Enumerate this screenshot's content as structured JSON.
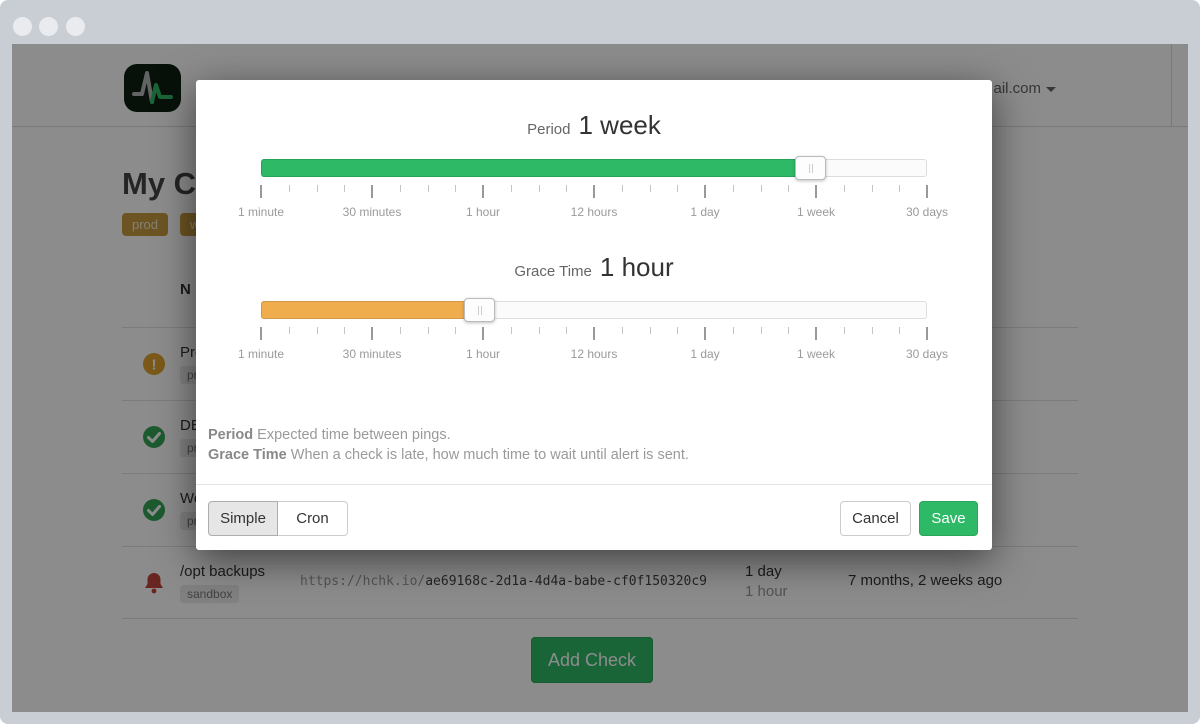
{
  "header": {
    "account_label": "ail.com"
  },
  "page": {
    "title": "My C",
    "filter_tags": [
      "prod",
      "work"
    ],
    "table": {
      "name_header": "N"
    },
    "rows": [
      {
        "status": "grace",
        "name": "Pro",
        "tag": "pr"
      },
      {
        "status": "up",
        "name": "DE",
        "tag": "pr"
      },
      {
        "status": "up",
        "name": "We",
        "tag": "pr"
      },
      {
        "status": "down",
        "name": "/opt backups",
        "tag": "sandbox",
        "url_prefix": "https://hchk.io/",
        "url_code": "ae69168c-2d1a-4d4a-babe-cf0f150320c9",
        "period": "1 day",
        "grace": "1 hour",
        "last_ping": "7 months, 2 weeks ago"
      }
    ],
    "add_check_label": "Add Check"
  },
  "modal": {
    "period": {
      "label": "Period",
      "value": "1 week",
      "color": "#2eb967",
      "fill_pct": 82.7,
      "handle_pct": 82.7
    },
    "grace": {
      "label": "Grace Time",
      "value": "1 hour",
      "color": "#f0ad4e",
      "fill_pct": 32.9,
      "handle_pct": 32.9
    },
    "tick_labels": [
      "1 minute",
      "30 minutes",
      "1 hour",
      "12 hours",
      "1 day",
      "1 week",
      "30 days"
    ],
    "help": [
      {
        "term": "Period",
        "text": "Expected time between pings."
      },
      {
        "term": "Grace Time",
        "text": "When a check is late, how much time to wait until alert is sent."
      }
    ],
    "footer": {
      "simple": "Simple",
      "cron": "Cron",
      "cancel": "Cancel",
      "save": "Save"
    }
  },
  "colors": {
    "green": "#2eb967",
    "orange": "#f0ad4e"
  }
}
